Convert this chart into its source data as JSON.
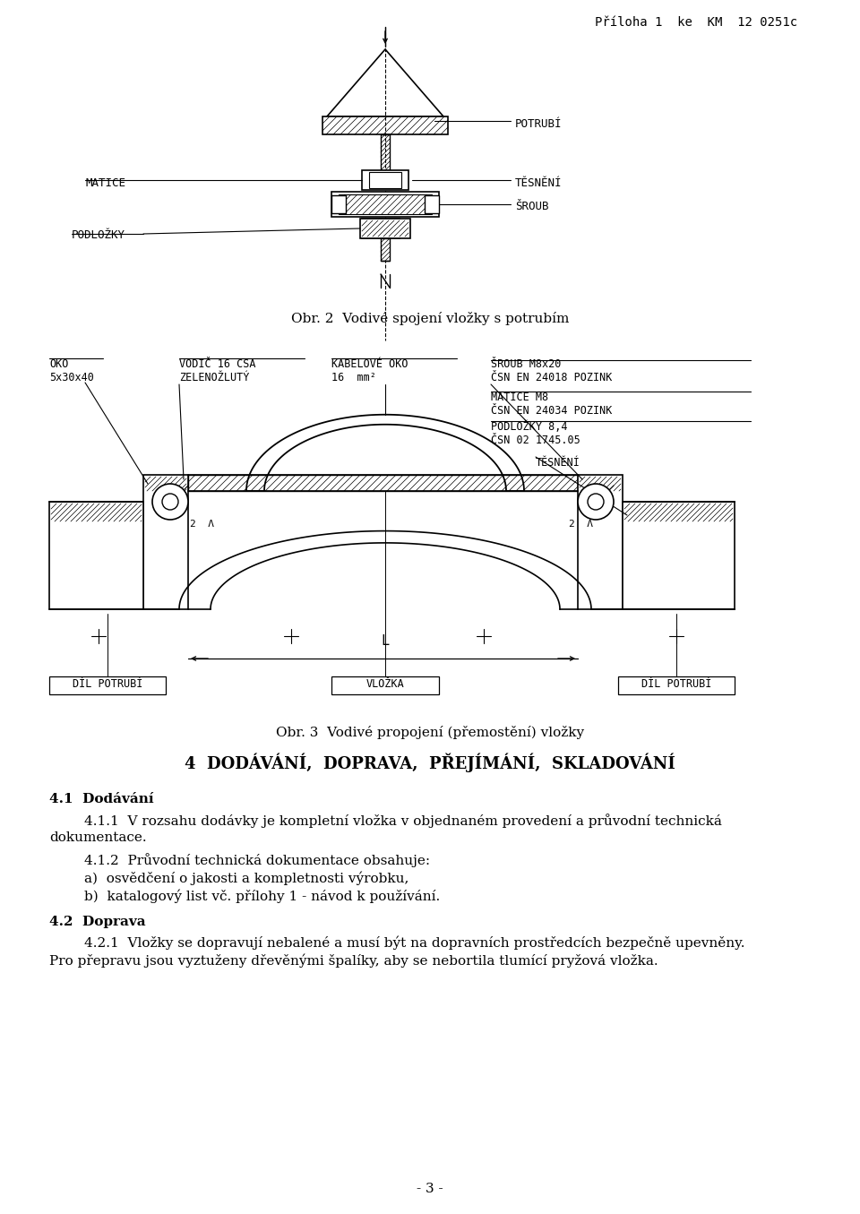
{
  "title_right": "Příloha 1  ke  KM  12 0251c",
  "fig2_caption": "Obr. 2  Vodivé spojení vložky s potrubím",
  "fig3_caption": "Obr. 3  Vodivé propojení (přemostění) vložky",
  "section_heading": "4  DODÁVÁNÍ,  DOPRAVA,  PŘEJÍMÁNÍ,  SKLADOVÁNÍ",
  "s41_head": "4.1  Dodávání",
  "s411": "        4.1.1  V rozsahu dodávky je kompletní vložka v objednaném provedení a průvodní technická",
  "s411b": "dokumentace.",
  "s412_head": "        4.1.2  Průvodní technická dokumentace obsahuje:",
  "s412a": "        a)  osvědčení o jakosti a kompletnosti výrobku,",
  "s412b": "        b)  katalogový list vč. přílohy 1 - návod k používání.",
  "s42_head": "4.2  Doprava",
  "s421": "        4.2.1  Vložky se dopravují nebalené a musí být na dopravních prostředcích bezpečně upevněny.",
  "s421b": "Pro přepravu jsou vyztuženy dřevěnými špalíky, aby se nebortila tlumící pryžová vložka.",
  "page_num": "- 3 -",
  "bg_color": "#ffffff"
}
